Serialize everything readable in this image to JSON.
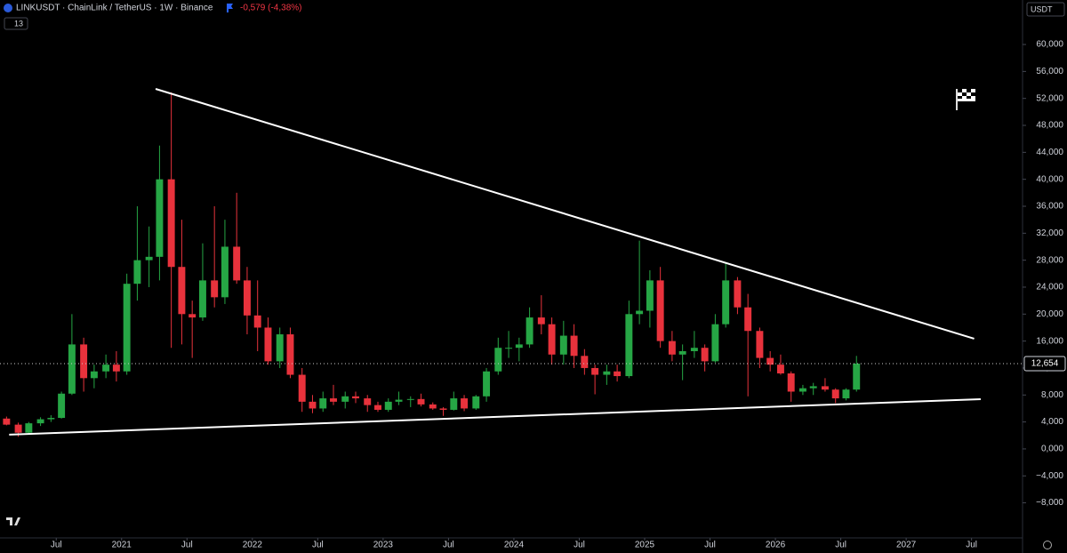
{
  "chart_data": {
    "type": "candlestick",
    "title": "LINKUSDT · ChainLink / TetherUS · 1W · Binance",
    "change": "-0,579 (-4,38%)",
    "indicator_count": "13",
    "currency": "USDT",
    "xlim": [
      2020.07,
      2027.89
    ],
    "ylim": [
      -13.2,
      66.6
    ],
    "xticks": [
      {
        "value": 2020.5,
        "label": "Jul"
      },
      {
        "value": 2021,
        "label": "2021"
      },
      {
        "value": 2021.5,
        "label": "Jul"
      },
      {
        "value": 2022,
        "label": "2022"
      },
      {
        "value": 2022.5,
        "label": "Jul"
      },
      {
        "value": 2023,
        "label": "2023"
      },
      {
        "value": 2023.5,
        "label": "Jul"
      },
      {
        "value": 2024,
        "label": "2024"
      },
      {
        "value": 2024.5,
        "label": "Jul"
      },
      {
        "value": 2025,
        "label": "2025"
      },
      {
        "value": 2025.5,
        "label": "Jul"
      },
      {
        "value": 2026,
        "label": "2026"
      },
      {
        "value": 2026.5,
        "label": "Jul"
      },
      {
        "value": 2027,
        "label": "2027"
      },
      {
        "value": 2027.5,
        "label": "Jul"
      }
    ],
    "yticks": [
      {
        "value": -8,
        "label": "−8,000"
      },
      {
        "value": -4,
        "label": "−4,000"
      },
      {
        "value": 0,
        "label": "0,000"
      },
      {
        "value": 4,
        "label": "4,000"
      },
      {
        "value": 8,
        "label": "8,000"
      },
      {
        "value": 12,
        "label": "12,000"
      },
      {
        "value": 16,
        "label": "16,000"
      },
      {
        "value": 20,
        "label": "20,000"
      },
      {
        "value": 24,
        "label": "24,000"
      },
      {
        "value": 28,
        "label": "28,000"
      },
      {
        "value": 32,
        "label": "32,000"
      },
      {
        "value": 36,
        "label": "36,000"
      },
      {
        "value": 40,
        "label": "40,000"
      },
      {
        "value": 44,
        "label": "44,000"
      },
      {
        "value": 48,
        "label": "48,000"
      },
      {
        "value": 52,
        "label": "52,000"
      },
      {
        "value": 56,
        "label": "56,000"
      },
      {
        "value": 60,
        "label": "60,000"
      }
    ],
    "up_color": "#26a645",
    "down_color": "#e8323c",
    "last_price": {
      "value": 12.654,
      "label": "12,654"
    },
    "trendlines": [
      {
        "color": "#ffffff",
        "x": [
          2021.26,
          2027.52
        ],
        "y": [
          53.41,
          16.35
        ]
      },
      {
        "color": "#ffffff",
        "x": [
          2020.14,
          2027.57
        ],
        "y": [
          2.11,
          7.38
        ]
      }
    ],
    "candles": {
      "x": [
        2020.12,
        2020.21,
        2020.29,
        2020.38,
        2020.46,
        2020.54,
        2020.62,
        2020.71,
        2020.79,
        2020.88,
        2020.96,
        2021.04,
        2021.12,
        2021.21,
        2021.29,
        2021.38,
        2021.46,
        2021.54,
        2021.62,
        2021.71,
        2021.79,
        2021.88,
        2021.96,
        2022.04,
        2022.12,
        2022.21,
        2022.29,
        2022.38,
        2022.46,
        2022.54,
        2022.62,
        2022.71,
        2022.79,
        2022.88,
        2022.96,
        2023.04,
        2023.12,
        2023.21,
        2023.29,
        2023.38,
        2023.46,
        2023.54,
        2023.62,
        2023.71,
        2023.79,
        2023.88,
        2023.96,
        2024.04,
        2024.12,
        2024.21,
        2024.29,
        2024.38,
        2024.46,
        2024.54,
        2024.62,
        2024.71,
        2024.79,
        2024.88,
        2024.96,
        2025.04,
        2025.12,
        2025.21,
        2025.29,
        2025.38,
        2025.46,
        2025.54,
        2025.62,
        2025.71,
        2025.79,
        2025.88,
        2025.96,
        2026.04,
        2026.12,
        2026.21,
        2026.29,
        2026.38,
        2026.46,
        2026.54,
        2026.62
      ],
      "open": [
        4.5,
        3.6,
        2.4,
        3.8,
        4.4,
        4.6,
        8.2,
        15.5,
        10.5,
        11.5,
        12.5,
        11.5,
        24.5,
        28,
        28.5,
        40,
        27,
        20,
        19.5,
        25,
        22.5,
        30,
        25,
        19.8,
        18,
        13,
        17,
        11,
        7,
        6,
        7.5,
        7,
        7.8,
        7.5,
        6.5,
        5.8,
        7,
        7.3,
        7.4,
        6.6,
        6,
        5.8,
        7.5,
        6,
        7.8,
        11.5,
        15,
        15,
        15.5,
        19.5,
        18.5,
        14,
        16.8,
        13.8,
        12,
        11,
        11.5,
        10.8,
        20,
        20.5,
        25,
        16,
        14,
        14.5,
        15,
        13,
        18.5,
        25,
        21,
        17.5,
        13.5,
        12.5,
        11.2,
        8.5,
        9,
        9.3,
        8.8,
        7.5,
        8.8
      ],
      "high": [
        4.8,
        3.9,
        4,
        4.7,
        5,
        8.5,
        20,
        16.5,
        12.5,
        14,
        14.5,
        26,
        36,
        33,
        45,
        52.9,
        34,
        22,
        30.5,
        36,
        34,
        38,
        27,
        25,
        19.5,
        18,
        18,
        12,
        8,
        8.5,
        9.5,
        8.5,
        8.5,
        8,
        7,
        7.5,
        8.5,
        7.8,
        8.2,
        6.9,
        6.2,
        8.5,
        8,
        8,
        12,
        16.5,
        17.5,
        16.5,
        21,
        22.8,
        19.5,
        19,
        18.5,
        14.8,
        12.5,
        12.5,
        12.5,
        22,
        30.9,
        26.5,
        27,
        17.5,
        15.5,
        17.5,
        15.5,
        20,
        27.6,
        25.5,
        23,
        18,
        14.5,
        14,
        11.5,
        9.5,
        9.8,
        10.5,
        9,
        9,
        13.8
      ],
      "low": [
        3.5,
        1.8,
        2.3,
        3.4,
        4,
        4.5,
        8,
        8.5,
        9,
        10.5,
        10,
        11,
        22,
        24,
        25,
        15,
        15.5,
        13.5,
        19,
        21,
        21.5,
        24.5,
        17,
        14.5,
        12.5,
        12,
        10.5,
        5.5,
        5.3,
        5.5,
        6.5,
        6,
        6.8,
        5.5,
        5.5,
        5.5,
        6.5,
        6.2,
        6.3,
        5.8,
        4.9,
        5.7,
        5.6,
        5.8,
        7,
        11,
        13.5,
        13,
        15,
        17,
        12.5,
        12.5,
        12,
        11,
        8.1,
        9.5,
        10,
        10.5,
        18.5,
        18,
        15,
        13,
        10.2,
        13.5,
        11.5,
        12.8,
        18,
        20,
        7.8,
        12,
        11.5,
        11,
        7,
        8,
        8,
        8.5,
        6.8,
        7.2,
        8.5
      ],
      "close": [
        3.6,
        2.4,
        3.8,
        4.4,
        4.6,
        8.2,
        15.5,
        10.5,
        11.5,
        12.5,
        11.5,
        24.5,
        28,
        28.5,
        40,
        27,
        20,
        19.5,
        25,
        22.5,
        30,
        25,
        19.8,
        18,
        13,
        17,
        11,
        7,
        6,
        7.5,
        7,
        7.8,
        7.5,
        6.5,
        5.8,
        7,
        7.3,
        7.4,
        6.6,
        6,
        5.8,
        7.5,
        6,
        7.8,
        11.5,
        15,
        15,
        15.5,
        19.5,
        18.5,
        14,
        16.8,
        13.8,
        12,
        11,
        11.5,
        10.8,
        20,
        20.5,
        25,
        16,
        14,
        14.5,
        15,
        13,
        18.5,
        25,
        21,
        17.5,
        13.5,
        12.5,
        11.2,
        8.5,
        9,
        9.3,
        8.8,
        7.5,
        8.8,
        12.654
      ]
    }
  }
}
